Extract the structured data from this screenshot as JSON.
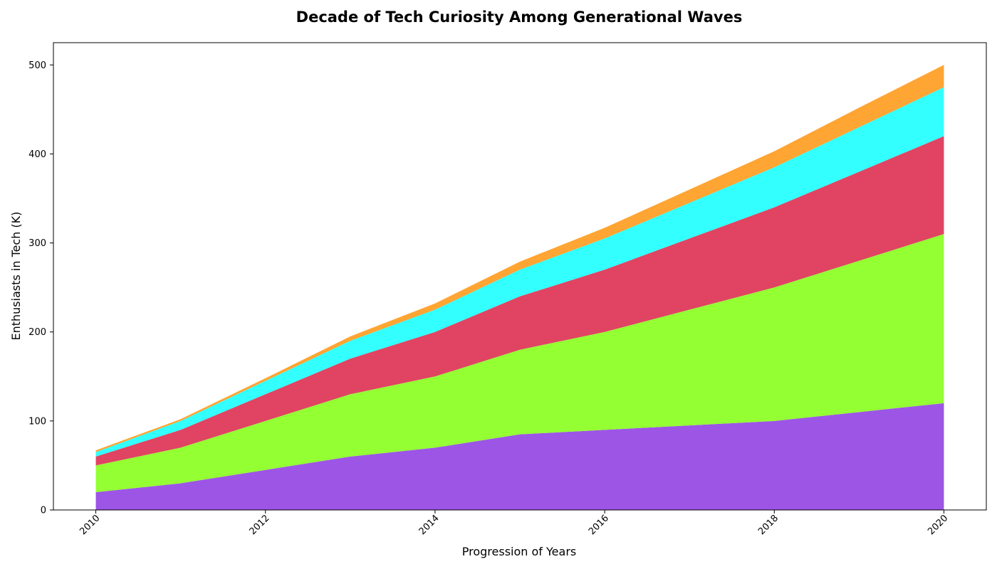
{
  "chart_data": {
    "type": "area",
    "stacked": true,
    "title": "Decade of Tech Curiosity Among Generational Waves",
    "xlabel": "Progression of Years",
    "ylabel": "Enthusiasts in Tech (K)",
    "x": [
      2010,
      2011,
      2012,
      2013,
      2014,
      2015,
      2016,
      2017,
      2018,
      2019,
      2020
    ],
    "xticks": [
      "2010",
      "2012",
      "2014",
      "2016",
      "2018",
      "2020"
    ],
    "yticks": [
      "0",
      "100",
      "200",
      "300",
      "400",
      "500"
    ],
    "xlim": [
      2009.5,
      2020.5
    ],
    "ylim": [
      0,
      525
    ],
    "grid": false,
    "legend": false,
    "series": [
      {
        "color": "#9d55e6",
        "values": [
          20,
          30,
          45,
          60,
          70,
          85,
          90,
          95,
          100,
          110,
          120
        ]
      },
      {
        "color": "#94ff33",
        "values": [
          30,
          40,
          55,
          70,
          80,
          95,
          110,
          130,
          150,
          170,
          190
        ]
      },
      {
        "color": "#e04462",
        "values": [
          10,
          20,
          30,
          40,
          50,
          60,
          70,
          80,
          90,
          100,
          110
        ]
      },
      {
        "color": "#33ffff",
        "values": [
          5,
          10,
          15,
          20,
          25,
          30,
          35,
          40,
          45,
          50,
          55
        ]
      },
      {
        "color": "#ffa533",
        "values": [
          2,
          2,
          3,
          5,
          7,
          9,
          12,
          15,
          18,
          22,
          25
        ]
      }
    ]
  }
}
